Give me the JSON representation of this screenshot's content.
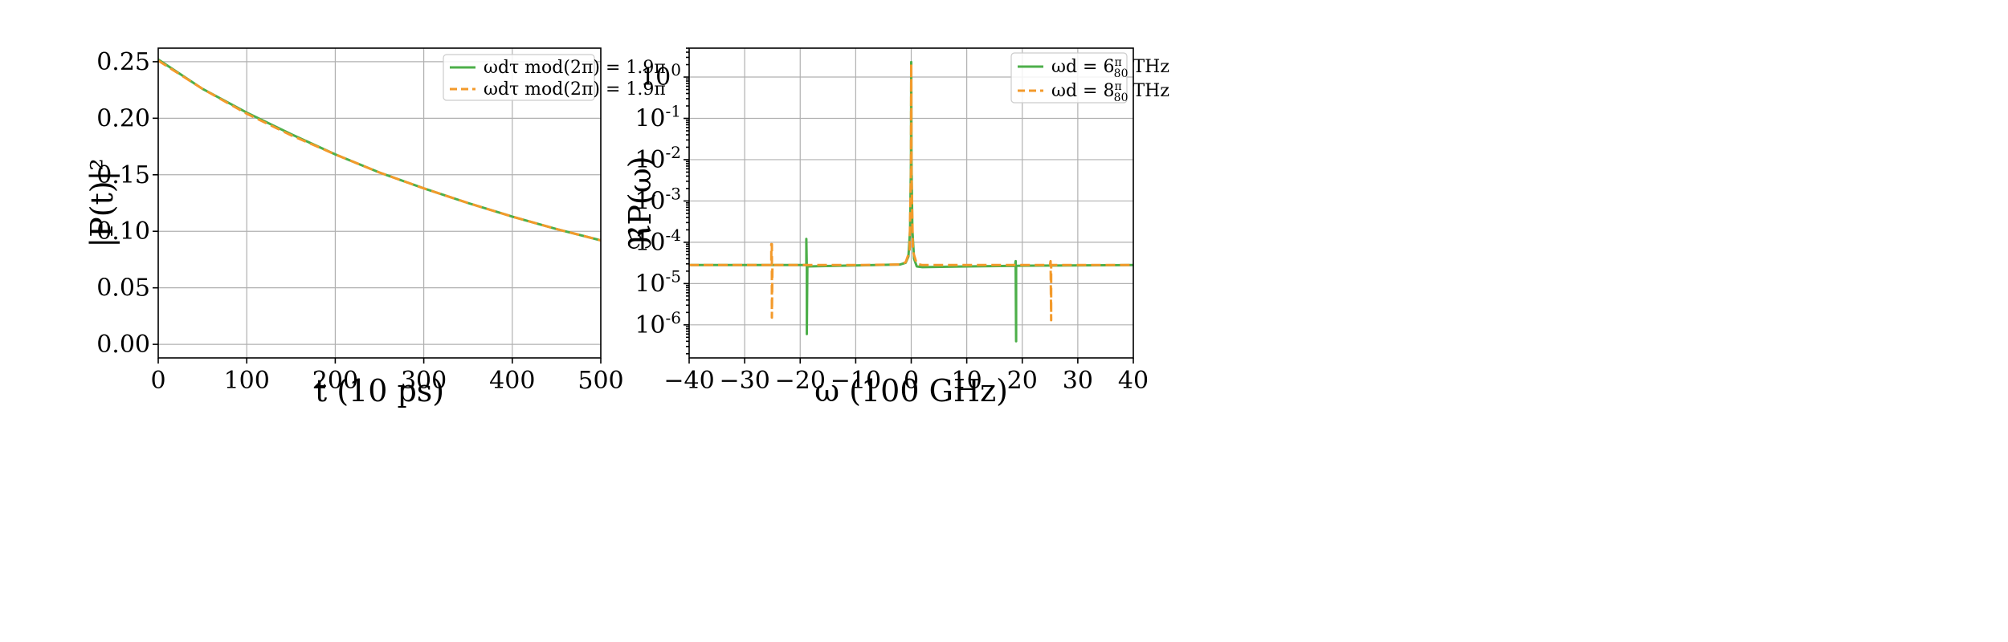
{
  "colors": {
    "green": "#4daf4a",
    "orange": "#f39a2b"
  },
  "chart_data": [
    {
      "type": "line",
      "xlabel": "t (10 ps)",
      "ylabel": "|P(t)|²",
      "xlim": [
        0,
        500
      ],
      "ylim": [
        -0.012,
        0.262
      ],
      "xticks": [
        0,
        100,
        200,
        300,
        400,
        500
      ],
      "xtick_labels": [
        "0",
        "100",
        "200",
        "300",
        "400",
        "500"
      ],
      "yticks": [
        0.0,
        0.05,
        0.1,
        0.15,
        0.2,
        0.25
      ],
      "ytick_labels": [
        "0.00",
        "0.05",
        "0.10",
        "0.15",
        "0.20",
        "0.25"
      ],
      "grid": true,
      "legend_position": "top-right",
      "series": [
        {
          "name": "ωdτ mod(2π) = 1.9π",
          "style": "solid",
          "color": "#4daf4a",
          "x": [
            0,
            50,
            100,
            150,
            200,
            250,
            300,
            350,
            400,
            450,
            500
          ],
          "y": [
            0.252,
            0.226,
            0.205,
            0.186,
            0.168,
            0.152,
            0.138,
            0.125,
            0.113,
            0.102,
            0.092
          ]
        },
        {
          "name": "ωdτ mod(2π) = 1.9π",
          "style": "dashed",
          "color": "#f39a2b",
          "x": [
            0,
            50,
            100,
            150,
            200,
            250,
            300,
            350,
            400,
            450,
            500
          ],
          "y": [
            0.251,
            0.226,
            0.204,
            0.185,
            0.168,
            0.152,
            0.138,
            0.125,
            0.113,
            0.102,
            0.092
          ]
        }
      ]
    },
    {
      "type": "line",
      "xlabel": "ω (100 GHz)",
      "ylabel": "ℜP(ω)",
      "yscale": "log",
      "xlim": [
        -40,
        40
      ],
      "ylim_log10": [
        -6.8,
        0.7
      ],
      "xticks": [
        -40,
        -30,
        -20,
        -10,
        0,
        10,
        20,
        30,
        40
      ],
      "xtick_labels": [
        "−40",
        "−30",
        "−20",
        "−10",
        "0",
        "10",
        "20",
        "30",
        "40"
      ],
      "yticks_log10": [
        0,
        -1,
        -2,
        -3,
        -4,
        -5,
        -6
      ],
      "ytick_bases": [
        "10",
        "10",
        "10",
        "10",
        "10",
        "10",
        "10"
      ],
      "ytick_exponents": [
        "0",
        "-1",
        "-2",
        "-3",
        "-4",
        "-5",
        "-6"
      ],
      "grid": true,
      "legend_position": "top-right",
      "series": [
        {
          "name_prefix": "ωd = 6",
          "name_frac_num": "π",
          "name_frac_den": "80",
          "name_suffix": "THz",
          "style": "solid",
          "color": "#4daf4a",
          "x": [
            -40,
            -19,
            -18.9,
            -18.9,
            -18.8,
            -18.8,
            -18.7,
            -10,
            -2,
            -1,
            -0.5,
            -0.2,
            -0.05,
            0,
            0.05,
            0.2,
            0.5,
            1,
            2,
            10,
            18.7,
            18.8,
            18.8,
            18.9,
            18.9,
            19,
            40
          ],
          "y": [
            2.8e-05,
            2.8e-05,
            2.9e-05,
            0.00012,
            2.5e-05,
            6e-07,
            2.6e-05,
            2.75e-05,
            2.9e-05,
            3.2e-05,
            4.5e-05,
            0.0002,
            0.01,
            2.3,
            0.01,
            0.0002,
            4e-05,
            2.6e-05,
            2.5e-05,
            2.6e-05,
            2.7e-05,
            3.5e-05,
            3.5e-05,
            4e-07,
            2.6e-05,
            2.7e-05,
            2.8e-05
          ]
        },
        {
          "name_prefix": "ωd = 8",
          "name_frac_num": "π",
          "name_frac_den": "80",
          "name_suffix": "THz",
          "style": "dashed",
          "color": "#f39a2b",
          "x": [
            -40,
            -25.2,
            -25.2,
            -25.1,
            -25.1,
            -25.0,
            -10,
            -2,
            -1,
            -0.3,
            -0.05,
            0,
            0.05,
            0.3,
            1,
            2,
            10,
            25.0,
            25.1,
            25.1,
            25.2,
            25.2,
            40
          ],
          "y": [
            2.8e-05,
            2.8e-05,
            9e-05,
            9e-05,
            1.5e-06,
            2.8e-05,
            2.8e-05,
            2.9e-05,
            3.3e-05,
            6e-05,
            0.005,
            2.1,
            0.005,
            6e-05,
            3e-05,
            2.8e-05,
            2.8e-05,
            2.8e-05,
            3.5e-05,
            3.5e-05,
            1.3e-06,
            2.8e-05,
            2.8e-05
          ]
        }
      ]
    }
  ]
}
